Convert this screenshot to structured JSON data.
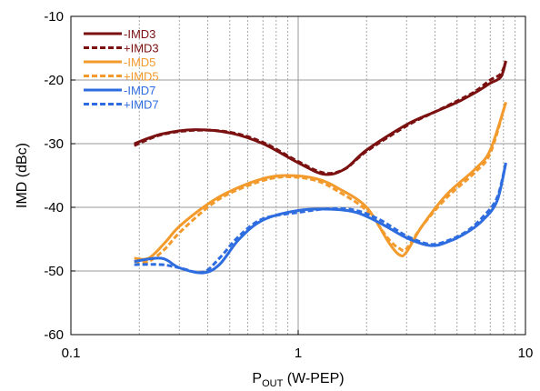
{
  "chart_data": {
    "type": "line",
    "xlabel_main": "P",
    "xlabel_sub": "OUT",
    "xlabel_rest": " (W-PEP)",
    "ylabel": "IMD (dBc)",
    "xscale": "log",
    "xlim": [
      0.1,
      10
    ],
    "ylim": [
      -60,
      -10
    ],
    "x_ticks": [
      0.1,
      1,
      10
    ],
    "x_tick_labels": [
      "0.1",
      "1",
      "10"
    ],
    "y_ticks": [
      -60,
      -50,
      -40,
      -30,
      -20,
      -10
    ],
    "y_tick_labels": [
      "-60",
      "-50",
      "-40",
      "-30",
      "-20",
      "-10"
    ],
    "grid": true,
    "legend_position": "top-left",
    "series": [
      {
        "name": "-IMD3",
        "color": "#7b1010",
        "style": "solid",
        "x": [
          0.19,
          0.25,
          0.35,
          0.5,
          0.7,
          1.0,
          1.3,
          1.6,
          2.0,
          3.0,
          4.0,
          5.0,
          6.0,
          7.0,
          7.8,
          8.2
        ],
        "y": [
          -30,
          -28.5,
          -27.8,
          -28.3,
          -30.0,
          -33.0,
          -34.8,
          -34.0,
          -31.0,
          -27.0,
          -25.0,
          -23.5,
          -22.0,
          -20.5,
          -19.5,
          -17.0
        ]
      },
      {
        "name": "+IMD3",
        "color": "#7b1010",
        "style": "dash",
        "x": [
          0.19,
          0.25,
          0.35,
          0.5,
          0.7,
          1.0,
          1.3,
          1.6,
          2.0,
          3.0,
          4.0,
          5.0,
          6.0,
          7.0,
          7.8,
          8.2
        ],
        "y": [
          -30.3,
          -28.6,
          -27.9,
          -28.2,
          -29.8,
          -32.8,
          -34.6,
          -34.0,
          -31.2,
          -27.2,
          -25.0,
          -23.3,
          -21.8,
          -20.0,
          -19.0,
          -17.0
        ]
      },
      {
        "name": "-IMD5",
        "color": "#f39a2c",
        "style": "solid",
        "x": [
          0.19,
          0.22,
          0.26,
          0.3,
          0.4,
          0.5,
          0.7,
          0.9,
          1.2,
          1.5,
          2.0,
          2.5,
          2.8,
          3.0,
          3.5,
          4.5,
          6.0,
          7.0,
          8.2
        ],
        "y": [
          -48,
          -48,
          -45.5,
          -43,
          -39.5,
          -37.5,
          -35.5,
          -35,
          -35.5,
          -37,
          -40,
          -45.5,
          -47.5,
          -47,
          -43,
          -38,
          -34,
          -31,
          -23.5
        ]
      },
      {
        "name": "+IMD5",
        "color": "#f39a2c",
        "style": "dash",
        "x": [
          0.19,
          0.22,
          0.26,
          0.3,
          0.4,
          0.5,
          0.7,
          0.9,
          1.2,
          1.5,
          2.0,
          2.5,
          2.8,
          3.0,
          3.5,
          4.5,
          6.0,
          7.0,
          8.2
        ],
        "y": [
          -48.5,
          -48.5,
          -46.5,
          -44,
          -40,
          -37.8,
          -35.8,
          -35.2,
          -35.8,
          -37.5,
          -40.5,
          -45,
          -46.5,
          -46.5,
          -43,
          -38.5,
          -34.5,
          -31.5,
          -23.5
        ]
      },
      {
        "name": "-IMD7",
        "color": "#2e6de0",
        "style": "solid",
        "x": [
          0.19,
          0.25,
          0.3,
          0.38,
          0.45,
          0.55,
          0.7,
          1.0,
          1.4,
          1.8,
          2.3,
          3.0,
          3.8,
          4.5,
          5.5,
          6.5,
          7.5,
          8.2
        ],
        "y": [
          -48.5,
          -48,
          -49.5,
          -50.3,
          -49,
          -45,
          -42,
          -40.5,
          -40.3,
          -40.8,
          -42.5,
          -44.8,
          -46,
          -45.5,
          -44,
          -42,
          -39,
          -33
        ]
      },
      {
        "name": "+IMD7",
        "color": "#2e6de0",
        "style": "dash",
        "x": [
          0.19,
          0.25,
          0.3,
          0.38,
          0.45,
          0.55,
          0.7,
          1.0,
          1.4,
          1.8,
          2.3,
          3.0,
          3.8,
          4.5,
          5.5,
          6.5,
          7.5,
          8.2
        ],
        "y": [
          -49,
          -49,
          -49.5,
          -50.2,
          -48,
          -44.5,
          -41.8,
          -40.8,
          -40.2,
          -40.5,
          -42,
          -44.5,
          -45.8,
          -45.3,
          -43.8,
          -41.5,
          -38.5,
          -33
        ]
      }
    ]
  }
}
